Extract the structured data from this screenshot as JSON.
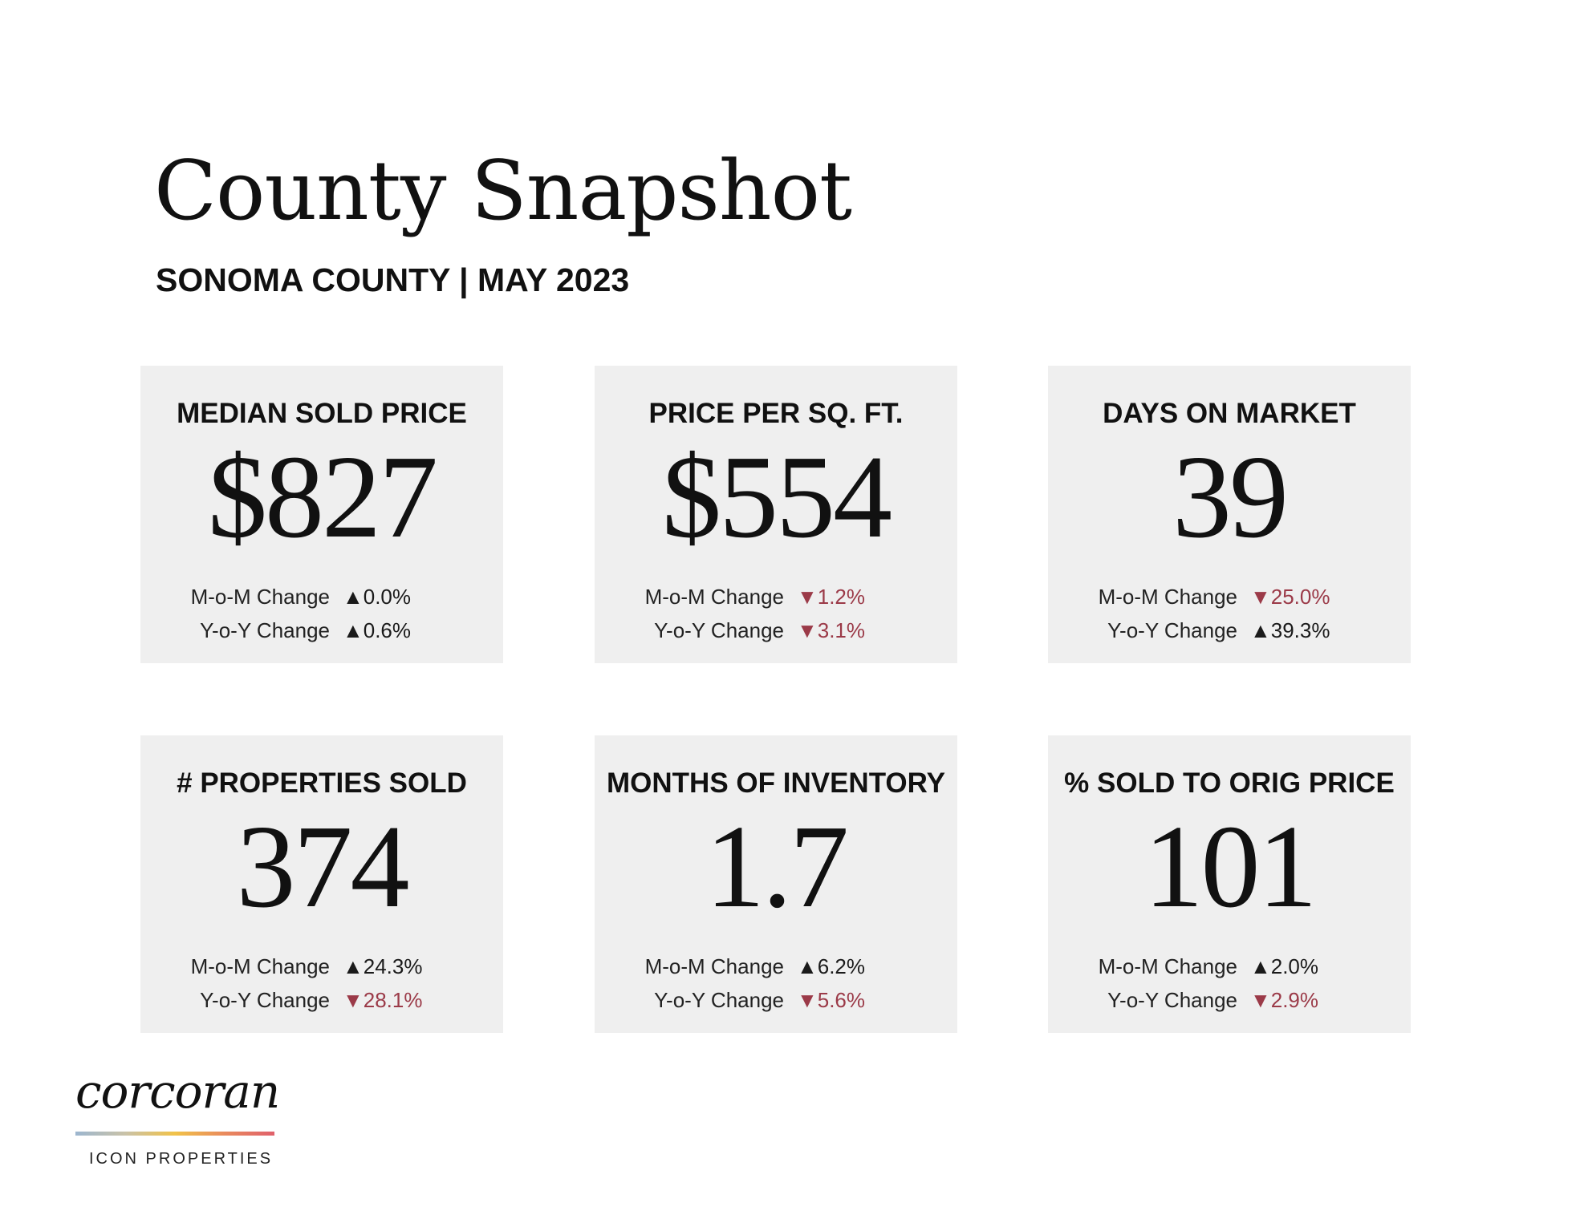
{
  "header": {
    "title": "County Snapshot",
    "subtitle": "SONOMA COUNTY | MAY 2023"
  },
  "cards": [
    {
      "label": "MEDIAN SOLD PRICE",
      "value": "$827",
      "mom_label": "M-o-M Change",
      "mom_value": "▲0.0%",
      "mom_dir": "up",
      "yoy_label": "Y-o-Y Change",
      "yoy_value": "▲0.6%",
      "yoy_dir": "up"
    },
    {
      "label": "PRICE PER SQ. FT.",
      "value": "$554",
      "mom_label": "M-o-M Change",
      "mom_value": "▼1.2%",
      "mom_dir": "down",
      "yoy_label": "Y-o-Y Change",
      "yoy_value": "▼3.1%",
      "yoy_dir": "down"
    },
    {
      "label": "DAYS ON MARKET",
      "value": "39",
      "mom_label": "M-o-M Change",
      "mom_value": "▼25.0%",
      "mom_dir": "down",
      "yoy_label": "Y-o-Y Change",
      "yoy_value": "▲39.3%",
      "yoy_dir": "up"
    },
    {
      "label": "# PROPERTIES SOLD",
      "value": "374",
      "mom_label": "M-o-M Change",
      "mom_value": "▲24.3%",
      "mom_dir": "up",
      "yoy_label": "Y-o-Y Change",
      "yoy_value": "▼28.1%",
      "yoy_dir": "down"
    },
    {
      "label": "MONTHS OF INVENTORY",
      "value": "1.7",
      "mom_label": "M-o-M Change",
      "mom_value": "▲6.2%",
      "mom_dir": "up",
      "yoy_label": "Y-o-Y Change",
      "yoy_value": "▼5.6%",
      "yoy_dir": "down"
    },
    {
      "label": "% SOLD TO ORIG PRICE",
      "value": "101",
      "mom_label": "M-o-M Change",
      "mom_value": "▲2.0%",
      "mom_dir": "up",
      "yoy_label": "Y-o-Y Change",
      "yoy_value": "▼2.9%",
      "yoy_dir": "down"
    }
  ],
  "logo": {
    "wordmark": "corcoran",
    "sub": "ICON PROPERTIES"
  },
  "colors": {
    "card_bg": "#efefef",
    "down": "#9b3a48",
    "up": "#1a1a1a"
  }
}
